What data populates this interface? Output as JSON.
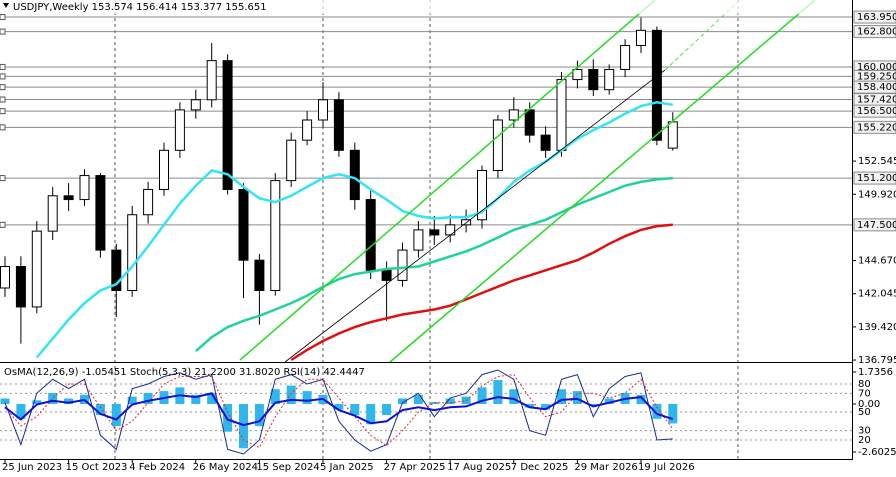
{
  "chart_data": {
    "type": "candlestick",
    "title": "USDJPY,Weekly  153.574 156.414 153.377 155.651",
    "categories": [
      "25 Jun 2023",
      null,
      null,
      null,
      "15 Oct 2023",
      null,
      null,
      null,
      "4 Feb 2024",
      null,
      null,
      null,
      "26 May 2024",
      null,
      null,
      null,
      "15 Sep 2024",
      null,
      null,
      null,
      "5 Jan 2025",
      null,
      null,
      null,
      "27 Apr 2025",
      null,
      null,
      null,
      "17 Aug 2025",
      null,
      null,
      null,
      "7 Dec 2025",
      null,
      null,
      null,
      "29 Mar 2026",
      null,
      null,
      null,
      "19 Jul 2026",
      null,
      null
    ],
    "open": [
      142.5,
      144.2,
      141.0,
      147.0,
      149.8,
      149.5,
      151.4,
      145.5,
      142.3,
      148.3,
      150.3,
      153.4,
      156.6,
      157.4,
      160.5,
      150.3,
      144.7,
      142.3,
      151.0,
      154.2,
      155.8,
      157.4,
      153.4,
      149.5,
      143.9,
      143.1,
      145.5,
      147.1,
      146.7,
      147.5,
      147.9,
      151.8,
      155.8,
      156.6,
      154.6,
      153.4,
      159.0,
      159.8,
      158.2,
      159.8,
      161.7,
      162.9,
      153.574
    ],
    "high": [
      145.0,
      145.0,
      147.8,
      150.5,
      150.8,
      151.9,
      151.6,
      146.0,
      149.0,
      150.9,
      154.0,
      157.2,
      158.2,
      161.9,
      161.0,
      150.8,
      145.2,
      151.6,
      154.8,
      156.5,
      158.8,
      158.0,
      154.0,
      150.2,
      144.6,
      146.1,
      147.8,
      148.2,
      148.3,
      148.7,
      152.2,
      156.2,
      157.6,
      157.2,
      155.3,
      159.6,
      160.5,
      160.6,
      160.2,
      162.2,
      163.9,
      163.2,
      156.414
    ],
    "low": [
      141.8,
      138.1,
      140.5,
      146.3,
      148.6,
      149.0,
      144.9,
      140.2,
      141.8,
      147.6,
      149.8,
      152.8,
      155.9,
      156.8,
      149.9,
      141.7,
      139.6,
      141.9,
      150.5,
      153.8,
      155.2,
      152.9,
      148.7,
      143.2,
      139.9,
      142.6,
      144.9,
      145.9,
      146.1,
      146.9,
      147.2,
      151.2,
      155.2,
      154.0,
      152.8,
      152.9,
      158.3,
      157.7,
      157.8,
      159.2,
      161.1,
      153.8,
      153.377
    ],
    "close": [
      144.2,
      141.0,
      147.0,
      149.8,
      149.5,
      151.4,
      145.5,
      142.3,
      148.3,
      150.3,
      153.4,
      156.6,
      157.4,
      160.5,
      150.3,
      144.7,
      142.3,
      151.0,
      154.2,
      155.8,
      157.4,
      153.4,
      149.5,
      143.9,
      143.1,
      145.5,
      147.1,
      146.7,
      147.5,
      147.9,
      151.8,
      155.8,
      156.6,
      154.6,
      153.4,
      159.0,
      159.8,
      158.2,
      159.8,
      161.7,
      162.9,
      154.2,
      155.651
    ],
    "up_color": "#ffffff",
    "down_color": "#000000",
    "ylim": [
      136.64,
      165.3
    ],
    "yticks": [
      152.545,
      {
        "value": 149.92,
        "label": "149.920"
      },
      {
        "value": 144.67,
        "label": "144.670"
      },
      142.045,
      {
        "value": 139.42,
        "label": "139.420"
      },
      136.795
    ],
    "levels": [
      {
        "value": 163.95,
        "label": "163.950"
      },
      {
        "value": 162.8,
        "label": "162.800"
      },
      {
        "value": 160,
        "label": "160.000"
      },
      {
        "value": 159.25,
        "label": "159.250"
      },
      {
        "value": 158.4,
        "label": "158.400"
      },
      {
        "value": 157.42,
        "label": "157.420"
      },
      {
        "value": 156.5,
        "label": "156.500"
      },
      {
        "value": 155.22,
        "label": "155.220"
      },
      {
        "value": 151.2,
        "label": "151.200"
      },
      {
        "value": 147.5,
        "label": "147.500"
      }
    ],
    "series": [
      {
        "color": "#33e4f4",
        "values": [
          null,
          null,
          137.0,
          138.5,
          140.0,
          141.3,
          142.3,
          142.8,
          144.2,
          145.8,
          147.5,
          149.2,
          150.6,
          151.8,
          151.5,
          150.5,
          149.6,
          149.3,
          149.8,
          150.5,
          151.2,
          151.5,
          151.2,
          150.3,
          149.5,
          148.6,
          148.2,
          148.0,
          148.1,
          148.1,
          148.5,
          149.6,
          150.9,
          151.8,
          152.5,
          153.4,
          154.3,
          155.0,
          155.6,
          156.3,
          156.9,
          157.2,
          157.0
        ]
      },
      {
        "color": "#1fd39a",
        "values": [
          null,
          null,
          null,
          null,
          null,
          null,
          null,
          null,
          null,
          null,
          null,
          null,
          137.5,
          138.6,
          139.4,
          139.9,
          140.3,
          140.8,
          141.3,
          141.9,
          142.6,
          143.2,
          143.6,
          143.8,
          144.0,
          144.1,
          144.2,
          144.6,
          145.0,
          145.4,
          145.9,
          146.5,
          147.1,
          147.5,
          147.9,
          148.5,
          149.1,
          149.6,
          150.1,
          150.6,
          150.9,
          151.1,
          151.2
        ]
      },
      {
        "color": "#e01010",
        "values": [
          null,
          null,
          null,
          null,
          null,
          null,
          null,
          null,
          null,
          null,
          null,
          null,
          null,
          null,
          null,
          null,
          null,
          null,
          136.8,
          137.6,
          138.3,
          138.9,
          139.4,
          139.8,
          140.1,
          140.4,
          140.6,
          140.8,
          141.1,
          141.6,
          142.1,
          142.6,
          143.1,
          143.5,
          143.9,
          144.3,
          144.7,
          145.3,
          146.0,
          146.6,
          147.1,
          147.4,
          147.5
        ]
      }
    ],
    "indicators": {
      "type": "oscillator",
      "title": "OsMA(12,26,9) -1.05451 Stoch(5,3,3) 21.2200 31.8020 RSI(14) 42.4447",
      "osma": {
        "color": "#2fb6ea",
        "ylim": [
          -2.6025,
          1.7356
        ],
        "yticks": [
          1.7356,
          {
            "value": 0,
            "label": "0.00"
          },
          -2.6025
        ],
        "values": [
          0.3,
          -0.8,
          0.2,
          0.6,
          0.3,
          0.5,
          -0.6,
          -1.2,
          0.4,
          0.6,
          0.7,
          0.9,
          0.5,
          0.6,
          -1.5,
          -2.4,
          -1.2,
          0.8,
          1.0,
          0.7,
          0.5,
          -0.3,
          -0.6,
          -1.1,
          -0.6,
          0.3,
          0.5,
          0.1,
          0.3,
          0.4,
          0.9,
          1.3,
          0.8,
          -0.2,
          -0.3,
          0.8,
          0.7,
          -0.1,
          0.3,
          0.6,
          0.5,
          -0.8,
          -1.05451
        ]
      },
      "ylim": [
        0,
        100
      ],
      "yticks": [
        80,
        70,
        50,
        30,
        20
      ],
      "series": [
        {
          "color": "#1a2a9a",
          "dash": false,
          "values": [
            60,
            15,
            70,
            85,
            75,
            85,
            25,
            10,
            75,
            80,
            88,
            92,
            85,
            90,
            10,
            5,
            20,
            85,
            90,
            80,
            85,
            40,
            20,
            8,
            15,
            60,
            70,
            45,
            65,
            70,
            90,
            95,
            85,
            30,
            25,
            85,
            90,
            45,
            75,
            88,
            92,
            20,
            21.22
          ]
        },
        {
          "color": "#e02828",
          "dash": true,
          "values": [
            55,
            35,
            45,
            65,
            80,
            80,
            55,
            30,
            40,
            60,
            80,
            88,
            88,
            88,
            50,
            20,
            12,
            45,
            70,
            85,
            85,
            65,
            45,
            25,
            14,
            30,
            50,
            60,
            60,
            62,
            78,
            88,
            90,
            65,
            45,
            50,
            70,
            70,
            65,
            70,
            85,
            55,
            31.802
          ]
        },
        {
          "color": "#1010d0",
          "dash": false,
          "values": [
            55,
            42,
            58,
            62,
            60,
            63,
            48,
            42,
            58,
            62,
            65,
            68,
            66,
            70,
            42,
            36,
            40,
            60,
            63,
            62,
            64,
            52,
            46,
            38,
            40,
            52,
            55,
            52,
            55,
            56,
            62,
            66,
            64,
            55,
            53,
            63,
            64,
            56,
            60,
            64,
            66,
            48,
            42.4447
          ]
        }
      ]
    }
  }
}
